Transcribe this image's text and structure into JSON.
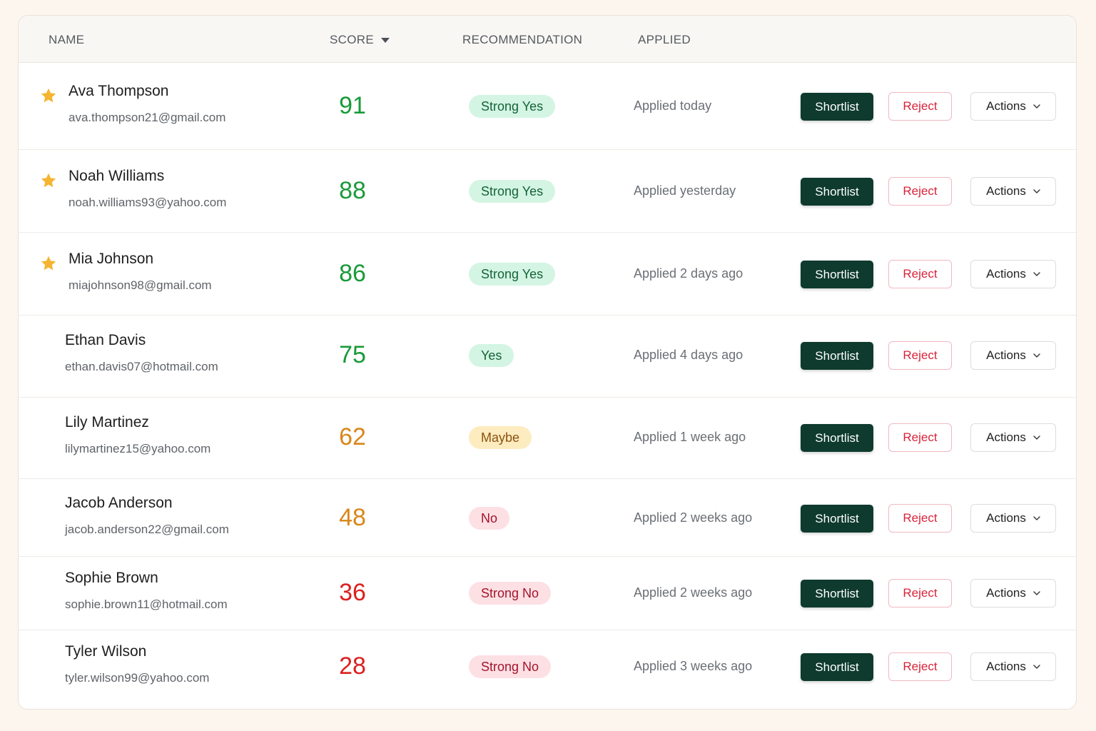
{
  "header": {
    "name": "NAME",
    "score": "SCORE",
    "recommendation": "RECOMMENDATION",
    "applied": "APPLIED"
  },
  "sort": {
    "icon": "caret-down-icon",
    "column": "score"
  },
  "buttons": {
    "shortlist": "Shortlist",
    "reject": "Reject",
    "actions": "Actions"
  },
  "colors": {
    "shortlist_bg": "#0e3b2e",
    "reject": "#d8233a",
    "star": "#f5b431",
    "score_high": "#1a9a3a",
    "score_mid": "#d9861a",
    "score_low": "#dc2020"
  },
  "candidates": [
    {
      "starred": true,
      "name": "Ava Thompson",
      "email": "ava.thompson21@gmail.com",
      "score": 91,
      "recommendation": "Strong Yes",
      "applied": "Applied today"
    },
    {
      "starred": true,
      "name": "Noah Williams",
      "email": "noah.williams93@yahoo.com",
      "score": 88,
      "recommendation": "Strong Yes",
      "applied": "Applied yesterday"
    },
    {
      "starred": true,
      "name": "Mia Johnson",
      "email": "miajohnson98@gmail.com",
      "score": 86,
      "recommendation": "Strong Yes",
      "applied": "Applied 2 days ago"
    },
    {
      "starred": false,
      "name": "Ethan Davis",
      "email": "ethan.davis07@hotmail.com",
      "score": 75,
      "recommendation": "Yes",
      "applied": "Applied 4 days ago"
    },
    {
      "starred": false,
      "name": "Lily Martinez",
      "email": "lilymartinez15@yahoo.com",
      "score": 62,
      "recommendation": "Maybe",
      "applied": "Applied 1 week ago"
    },
    {
      "starred": false,
      "name": "Jacob Anderson",
      "email": "jacob.anderson22@gmail.com",
      "score": 48,
      "recommendation": "No",
      "applied": "Applied 2 weeks ago"
    },
    {
      "starred": false,
      "name": "Sophie Brown",
      "email": "sophie.brown11@hotmail.com",
      "score": 36,
      "recommendation": "Strong No",
      "applied": "Applied 2 weeks ago"
    },
    {
      "starred": false,
      "name": "Tyler Wilson",
      "email": "tyler.wilson99@yahoo.com",
      "score": 28,
      "recommendation": "Strong No",
      "applied": "Applied 3 weeks ago"
    }
  ]
}
